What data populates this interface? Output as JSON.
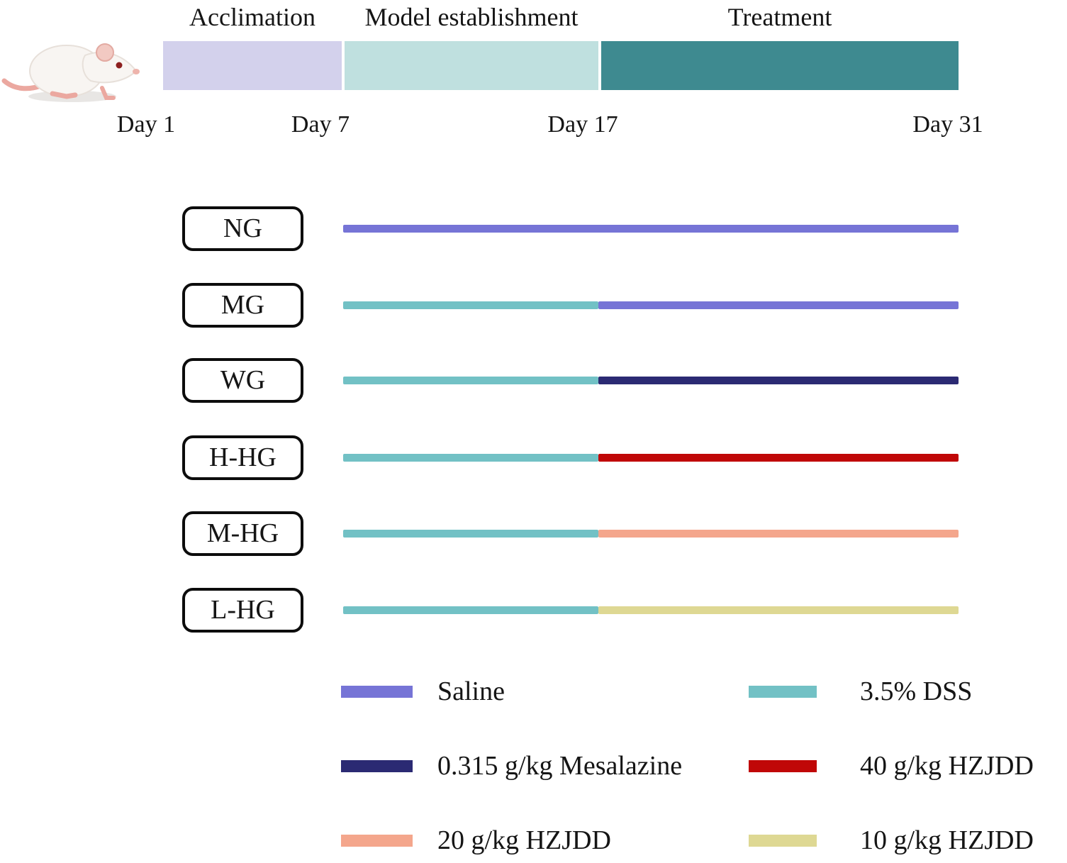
{
  "figure": {
    "subject_icon": "white-lab-rat",
    "timeline": {
      "phases": [
        {
          "label": "Acclimation",
          "color": "#d3d1ec",
          "start_day": "Day 1",
          "end_day": "Day 7"
        },
        {
          "label": "Model establishment",
          "color": "#bfe0df",
          "start_day": "Day 7",
          "end_day": "Day 17"
        },
        {
          "label": "Treatment",
          "color": "#3e8a90",
          "start_day": "Day 17",
          "end_day": "Day 31"
        }
      ],
      "day_labels": [
        "Day 1",
        "Day 7",
        "Day 17",
        "Day 31"
      ]
    },
    "groups": [
      {
        "label": "NG",
        "segments": [
          {
            "color": "#7674d6",
            "from": "Day 7",
            "to": "Day 31"
          }
        ]
      },
      {
        "label": "MG",
        "segments": [
          {
            "color": "#72c1c5",
            "from": "Day 7",
            "to": "Day 17"
          },
          {
            "color": "#7674d6",
            "from": "Day 17",
            "to": "Day 31"
          }
        ]
      },
      {
        "label": "WG",
        "segments": [
          {
            "color": "#72c1c5",
            "from": "Day 7",
            "to": "Day 17"
          },
          {
            "color": "#2b2a73",
            "from": "Day 17",
            "to": "Day 31"
          }
        ]
      },
      {
        "label": "H-HG",
        "segments": [
          {
            "color": "#72c1c5",
            "from": "Day 7",
            "to": "Day 17"
          },
          {
            "color": "#c00707",
            "from": "Day 17",
            "to": "Day 31"
          }
        ]
      },
      {
        "label": "M-HG",
        "segments": [
          {
            "color": "#72c1c5",
            "from": "Day 7",
            "to": "Day 17"
          },
          {
            "color": "#f4a68c",
            "from": "Day 17",
            "to": "Day 31"
          }
        ]
      },
      {
        "label": "L-HG",
        "segments": [
          {
            "color": "#72c1c5",
            "from": "Day 7",
            "to": "Day 17"
          },
          {
            "color": "#ded893",
            "from": "Day 17",
            "to": "Day 31"
          }
        ]
      }
    ],
    "legend": [
      {
        "label": "Saline",
        "color": "#7674d6"
      },
      {
        "label": "3.5% DSS",
        "color": "#72c1c5"
      },
      {
        "label": "0.315 g/kg Mesalazine",
        "color": "#2b2a73"
      },
      {
        "label": "40 g/kg HZJDD",
        "color": "#c00707"
      },
      {
        "label": "20 g/kg HZJDD",
        "color": "#f4a68c"
      },
      {
        "label": "10 g/kg HZJDD",
        "color": "#ded893"
      }
    ]
  }
}
